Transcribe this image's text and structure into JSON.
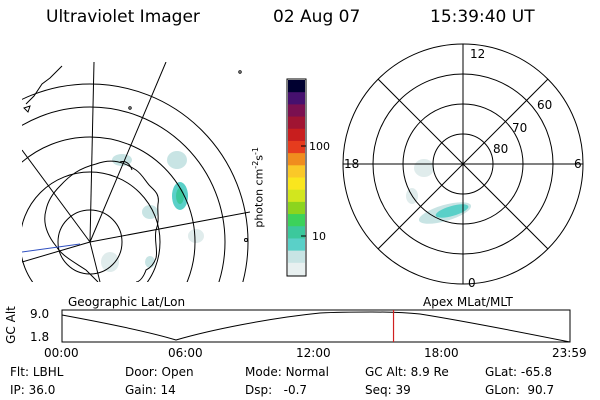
{
  "header": {
    "instrument": "Ultraviolet Imager",
    "date": "02 Aug 07",
    "time": "15:39:40 UT"
  },
  "geo_panel": {
    "label": "Geographic Lat/Lon"
  },
  "mag_panel": {
    "label": "Apex MLat/MLT",
    "mlt_labels": {
      "top": "12",
      "left": "18",
      "right": "6",
      "bottom": "0"
    },
    "lat_labels": [
      "60",
      "70",
      "80"
    ]
  },
  "colorbar": {
    "unit_text": "photon cm",
    "unit_sup1": "-2",
    "unit_s": "s",
    "unit_sup2": "-1",
    "tick_100": "100",
    "tick_10": "10",
    "scale": "log",
    "colors": [
      "#e8f0f0",
      "#c8e4e4",
      "#5ad0c8",
      "#3cc89c",
      "#3cd25a",
      "#8cd41e",
      "#d2e61e",
      "#fae61e",
      "#fac828",
      "#f08c1e",
      "#e63c1e",
      "#c81e1e",
      "#a01432",
      "#7a1050",
      "#46106e",
      "#000030"
    ]
  },
  "altitude_plot": {
    "ylabel": "GC Alt",
    "yticks": [
      "9.0",
      "1.8"
    ],
    "xticks": [
      "00:00",
      "06:00",
      "12:00",
      "18:00",
      "23:59"
    ],
    "current_time_fraction": 0.6526,
    "marker_color": "#d02020"
  },
  "info": {
    "flt_label": "Flt:",
    "flt_value": "LBHL",
    "ip_label": "IP:",
    "ip_value": "36.0",
    "door_label": "Door:",
    "door_value": "Open",
    "gain_label": "Gain:",
    "gain_value": "14",
    "mode_label": "Mode:",
    "mode_value": "Normal",
    "dsp_label": "Dsp:",
    "dsp_value": "-0.7",
    "gcalt_label": "GC Alt:",
    "gcalt_value": "8.9 Re",
    "seq_label": "Seq:",
    "seq_value": "39",
    "glat_label": "GLat:",
    "glat_value": "-65.8",
    "glon_label": "GLon:",
    "glon_value": "90.7"
  }
}
